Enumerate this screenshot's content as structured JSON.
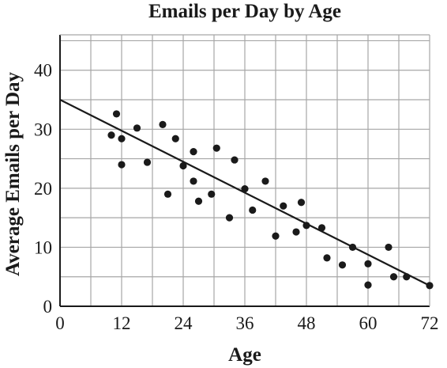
{
  "chart_data": {
    "type": "scatter",
    "title": "Emails per Day by Age",
    "xlabel": "Age",
    "ylabel": "Average Emails per Day",
    "xlim": [
      0,
      72
    ],
    "ylim": [
      0,
      46
    ],
    "x_ticks": [
      0,
      12,
      24,
      36,
      48,
      60,
      72
    ],
    "y_ticks": [
      0,
      10,
      20,
      30,
      40
    ],
    "x_grid_step": 6,
    "y_grid_step": 5,
    "grid": true,
    "series": [
      {
        "points": [
          [
            10,
            29
          ],
          [
            11,
            32.6
          ],
          [
            12,
            28.4
          ],
          [
            12,
            24
          ],
          [
            15,
            30.2
          ],
          [
            17,
            24.4
          ],
          [
            20,
            30.8
          ],
          [
            21,
            19
          ],
          [
            22.5,
            28.4
          ],
          [
            24,
            23.8
          ],
          [
            26,
            26.2
          ],
          [
            26,
            21.2
          ],
          [
            27,
            17.8
          ],
          [
            29.5,
            19
          ],
          [
            30.5,
            26.8
          ],
          [
            33,
            15
          ],
          [
            34,
            24.8
          ],
          [
            36,
            19.9
          ],
          [
            37.5,
            16.3
          ],
          [
            40,
            21.2
          ],
          [
            42,
            11.9
          ],
          [
            43.5,
            17
          ],
          [
            46,
            12.6
          ],
          [
            47,
            17.6
          ],
          [
            48,
            13.7
          ],
          [
            51,
            13.3
          ],
          [
            52,
            8.2
          ],
          [
            55,
            7
          ],
          [
            57,
            10
          ],
          [
            60,
            7.2
          ],
          [
            60,
            3.6
          ],
          [
            64,
            10
          ],
          [
            65,
            5
          ],
          [
            67.5,
            5
          ],
          [
            72,
            3.5
          ]
        ]
      }
    ],
    "trend_line": {
      "x": [
        0,
        72
      ],
      "y": [
        35,
        3.5
      ]
    }
  },
  "colors": {
    "marker": "#1a1a1a",
    "grid": "#a6a6a6",
    "axis": "#1a1a1a"
  }
}
